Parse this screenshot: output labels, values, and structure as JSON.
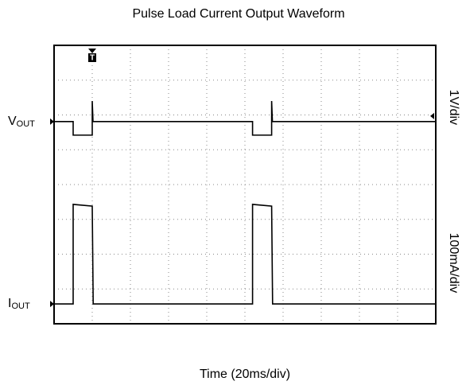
{
  "chart_data": {
    "type": "line",
    "title": "Pulse Load Current Output Waveform",
    "xlabel": "Time (20ms/div)",
    "xlim": [
      0,
      200
    ],
    "xticks": [
      0,
      20,
      40,
      60,
      80,
      100,
      120,
      140,
      160,
      180,
      200
    ],
    "ylim": [
      0,
      8
    ],
    "yticks": [
      0,
      1,
      2,
      3,
      4,
      5,
      6,
      7,
      8
    ],
    "grid": true,
    "trigger": {
      "label": "T",
      "x": 20
    },
    "series": [
      {
        "name": {
          "main": "V",
          "sub": "OUT"
        },
        "scale": "1V/div",
        "color": "#000000",
        "x": [
          0,
          10,
          10,
          20,
          20,
          20.4,
          104,
          104,
          114,
          114,
          114.4,
          200
        ],
        "values": [
          5.81,
          5.81,
          5.42,
          5.42,
          6.4,
          5.81,
          5.81,
          5.42,
          5.42,
          6.4,
          5.81,
          5.81
        ]
      },
      {
        "name": {
          "main": "I",
          "sub": "OUT"
        },
        "scale": "100mA/div",
        "color": "#000000",
        "x": [
          0,
          10,
          10,
          20,
          20.5,
          104,
          104,
          114,
          114.5,
          200
        ],
        "values": [
          0.57,
          0.57,
          3.43,
          3.38,
          0.57,
          0.57,
          3.43,
          3.38,
          0.57,
          0.57
        ]
      }
    ]
  }
}
